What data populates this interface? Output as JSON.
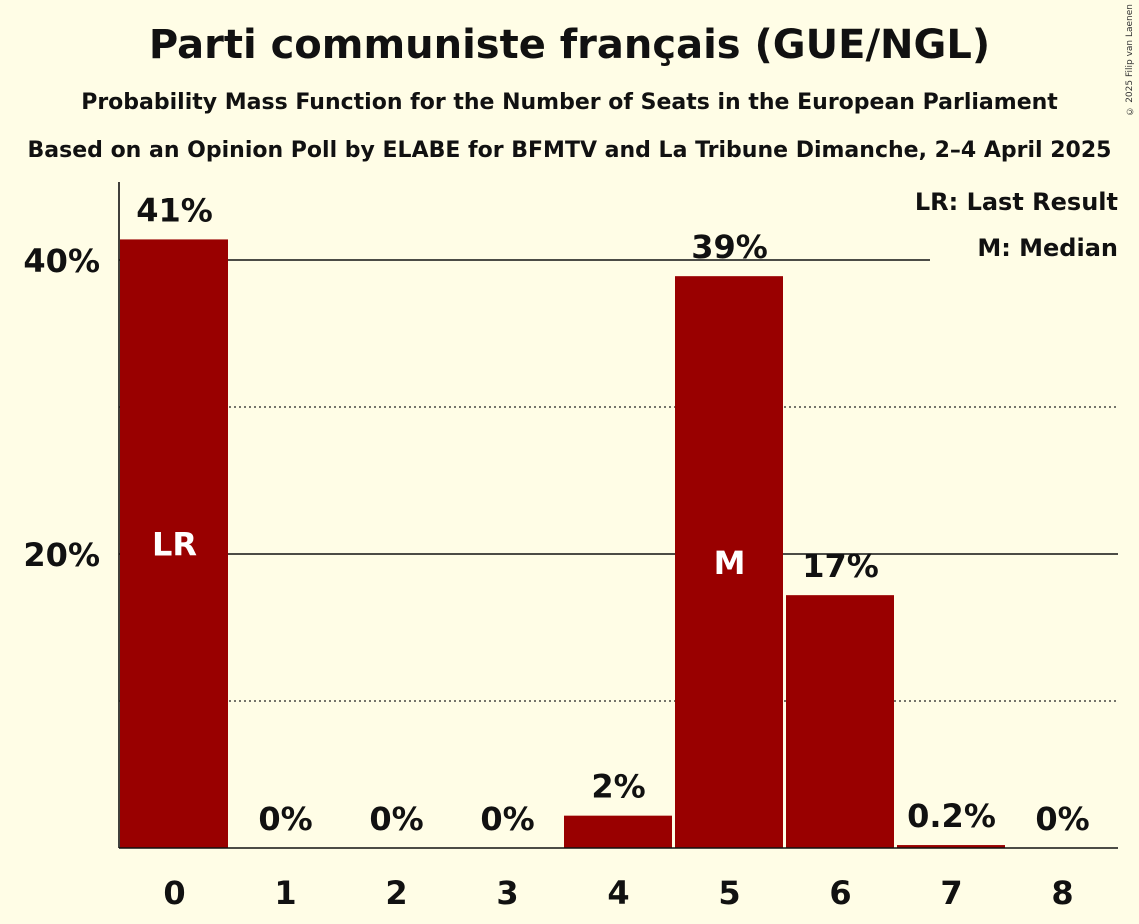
{
  "chart_data": {
    "type": "bar",
    "title": "Parti communiste français (GUE/NGL)",
    "subtitle": "Probability Mass Function for the Number of Seats in the European Parliament",
    "source": "Based on an Opinion Poll by ELABE for BFMTV and La Tribune Dimanche, 2–4 April 2025",
    "categories": [
      "0",
      "1",
      "2",
      "3",
      "4",
      "5",
      "6",
      "7",
      "8"
    ],
    "values": [
      41.4,
      0,
      0,
      0,
      2.2,
      38.9,
      17.2,
      0.2,
      0
    ],
    "value_labels": [
      "41%",
      "0%",
      "0%",
      "0%",
      "2%",
      "39%",
      "17%",
      "0.2%",
      "0%"
    ],
    "bar_markers": [
      {
        "index": 0,
        "text": "LR"
      },
      {
        "index": 5,
        "text": "M"
      }
    ],
    "ylim": [
      0,
      45
    ],
    "yticks": [
      {
        "value": 20,
        "label": "20%"
      },
      {
        "value": 40,
        "label": "40%"
      }
    ],
    "minor_gridlines": [
      10,
      30
    ],
    "legend": {
      "placement": "top-right",
      "items": [
        "LR: Last Result",
        "M: Median"
      ]
    },
    "colors": {
      "bar": "#990000",
      "background": "#FFFDE6",
      "text": "#111111"
    }
  },
  "copyright": "© 2025 Filip van Laenen"
}
